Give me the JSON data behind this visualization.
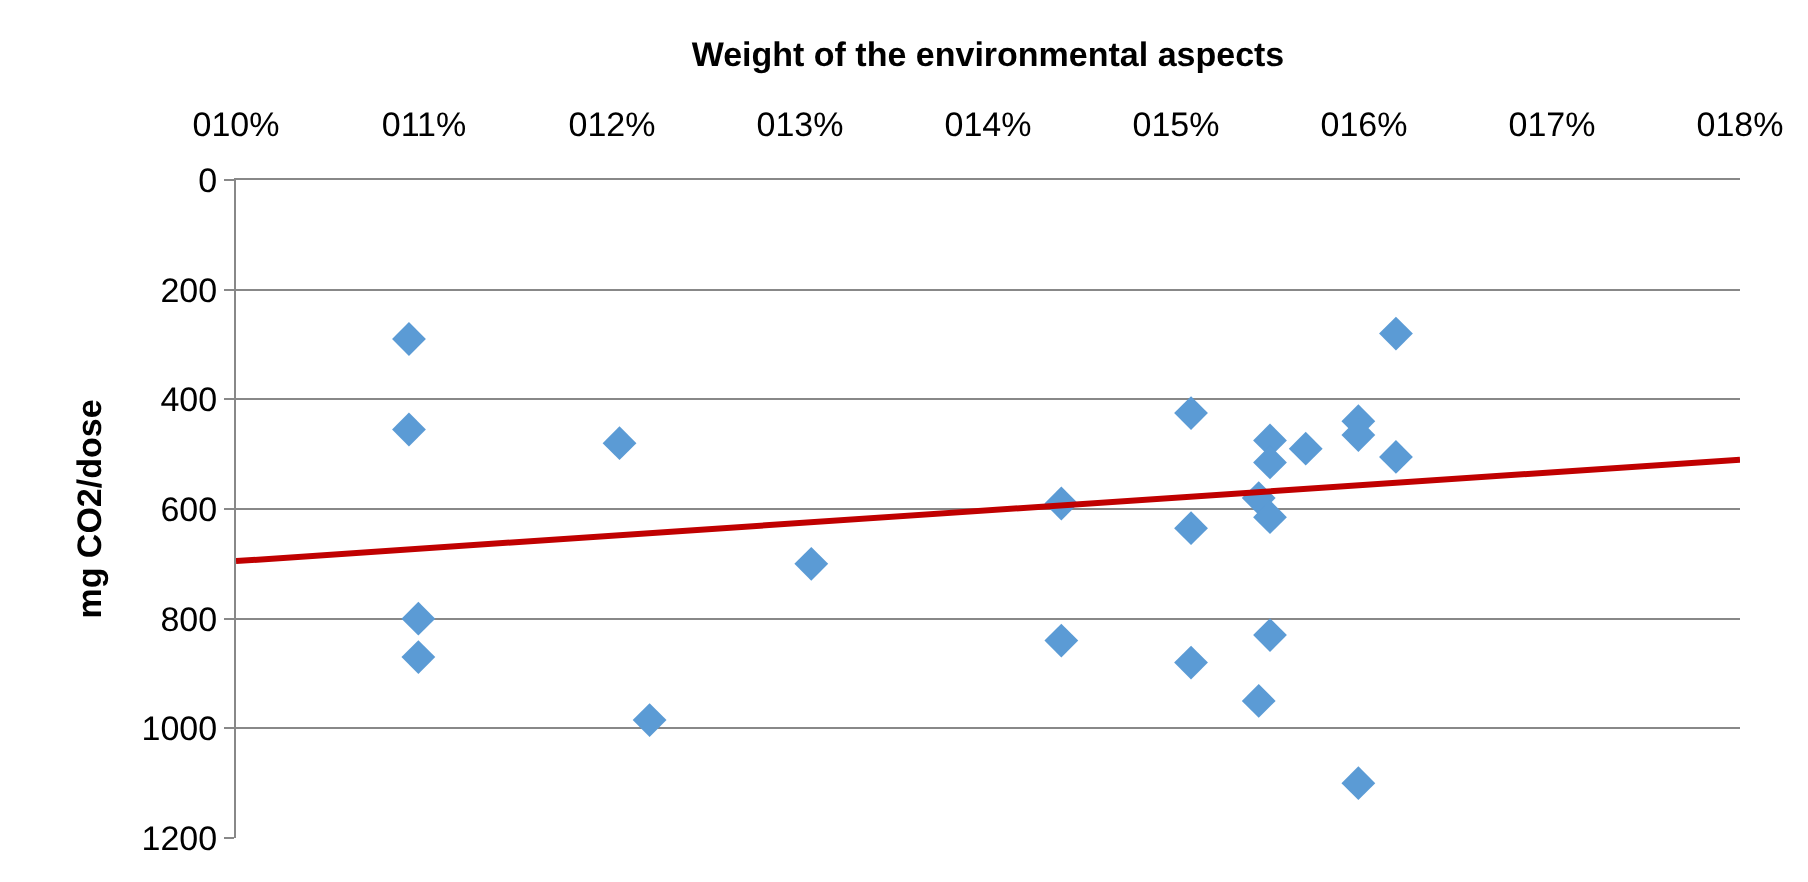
{
  "chart_data": {
    "type": "scatter",
    "xlabel": "Weight of the environmental aspects",
    "ylabel": "mg CO2/dose",
    "xlim": [
      10,
      18
    ],
    "ylim": [
      1200,
      0
    ],
    "xticks": [
      {
        "value": 10,
        "label": "010%"
      },
      {
        "value": 11,
        "label": "011%"
      },
      {
        "value": 12,
        "label": "012%"
      },
      {
        "value": 13,
        "label": "013%"
      },
      {
        "value": 14,
        "label": "014%"
      },
      {
        "value": 15,
        "label": "015%"
      },
      {
        "value": 16,
        "label": "016%"
      },
      {
        "value": 17,
        "label": "017%"
      },
      {
        "value": 18,
        "label": "018%"
      }
    ],
    "yticks": [
      0,
      200,
      400,
      600,
      800,
      1000,
      1200
    ],
    "grid": "y",
    "series": [
      {
        "color": "#5b9bd5",
        "marker": "diamond",
        "x": [
          10.92,
          10.92,
          10.97,
          10.97,
          12.04,
          12.2,
          13.06,
          14.39,
          14.39,
          15.08,
          15.08,
          15.08,
          15.44,
          15.44,
          15.5,
          15.5,
          15.5,
          15.5,
          15.69,
          15.97,
          15.97,
          15.97,
          16.17,
          16.17
        ],
        "values": [
          290,
          455,
          800,
          870,
          480,
          985,
          700,
          590,
          840,
          425,
          635,
          880,
          950,
          580,
          475,
          515,
          615,
          830,
          490,
          440,
          465,
          1100,
          280,
          505
        ]
      },
      {
        "type": "line",
        "color": "#c00000",
        "marker": "none",
        "line_style": "solid",
        "x": [
          10,
          18
        ],
        "values": [
          695,
          510
        ]
      }
    ]
  }
}
